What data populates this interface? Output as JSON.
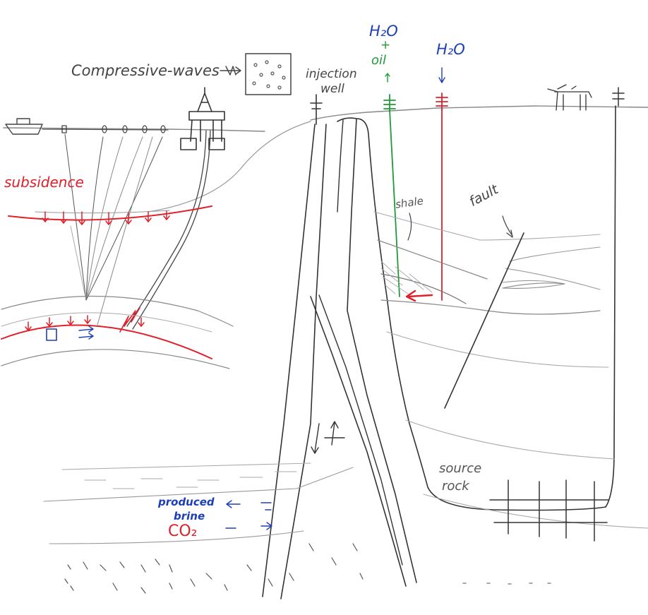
{
  "labels": {
    "compressive_waves": "Compressive-waves",
    "injection_well": "injection",
    "injection_well_line2": "well",
    "h2o_plus_oil_top": "H₂O",
    "h2o_plus_oil_plus": "+",
    "h2o_plus_oil_oil": "oil",
    "h2o_right": "H₂O",
    "subsidence": "subsidence",
    "shale": "shale",
    "fault": "fault",
    "source_rock": "source",
    "source_rock_line2": "rock",
    "produced_brine": "produced",
    "produced_brine_line2": "brine",
    "co2": "CO₂"
  },
  "colors": {
    "pencil": "#4a4a4a",
    "pencil_light": "#9a9a9a",
    "red": "#e0202a",
    "blue": "#1d3fb5",
    "green": "#1f9a3a"
  }
}
